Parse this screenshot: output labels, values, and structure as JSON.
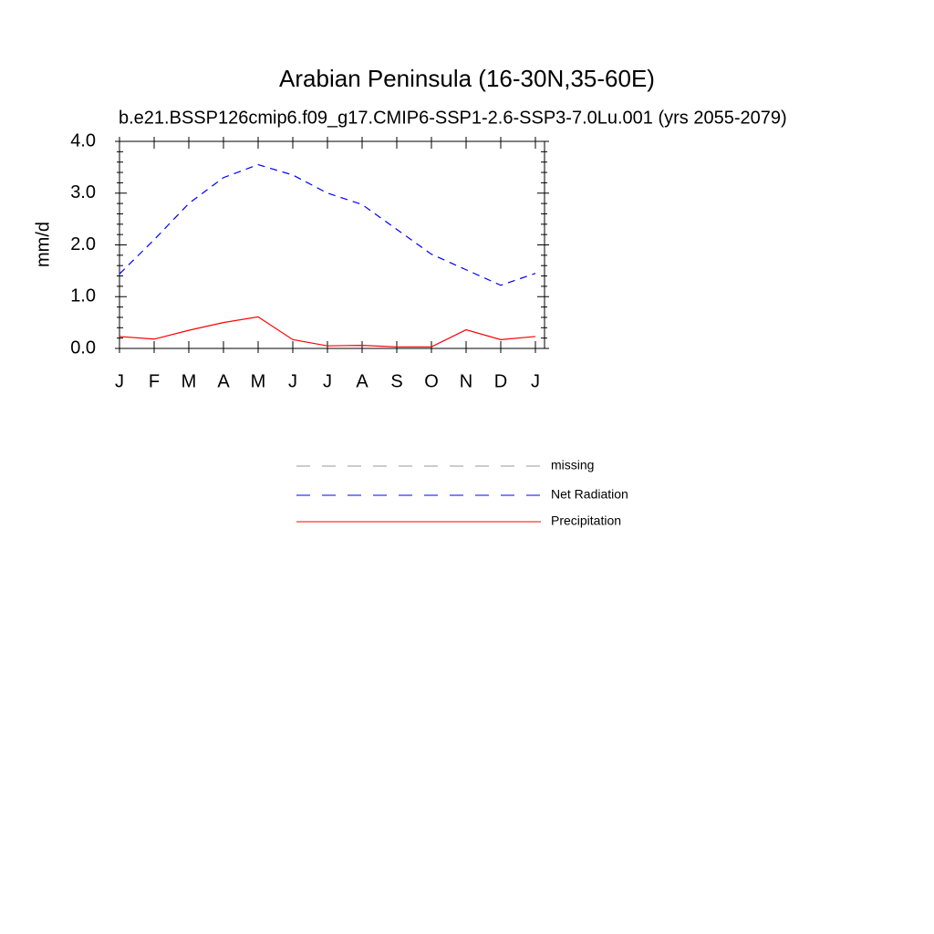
{
  "chart_data": {
    "type": "line",
    "title": "Arabian Peninsula (16-30N,35-60E)",
    "subtitle": "b.e21.BSSP126cmip6.f09_g17.CMIP6-SSP1-2.6-SSP3-7.0Lu.001 (yrs 2055-2079)",
    "y_label": "mm/d",
    "categories": [
      "J",
      "F",
      "M",
      "A",
      "M",
      "J",
      "J",
      "A",
      "S",
      "O",
      "N",
      "D",
      "J"
    ],
    "series": [
      {
        "name": "missing",
        "color": "#999999",
        "dash": true,
        "values": [
          null,
          null,
          null,
          null,
          null,
          null,
          null,
          null,
          null,
          null,
          null,
          null,
          null
        ]
      },
      {
        "name": "Net Radiation",
        "color": "#0000ff",
        "dash": true,
        "values": [
          1.44,
          2.1,
          2.8,
          3.3,
          3.55,
          3.35,
          3.0,
          2.78,
          2.3,
          1.82,
          1.52,
          1.22,
          1.45
        ]
      },
      {
        "name": "Precipitation",
        "color": "#ff0000",
        "dash": false,
        "values": [
          0.23,
          0.18,
          0.35,
          0.5,
          0.61,
          0.17,
          0.05,
          0.06,
          0.03,
          0.03,
          0.36,
          0.17,
          0.23
        ]
      }
    ],
    "ylim": [
      0,
      4
    ],
    "yticks": [
      {
        "value": 0,
        "label": "0.0"
      },
      {
        "value": 1,
        "label": "1.0"
      },
      {
        "value": 2,
        "label": "2.0"
      },
      {
        "value": 3,
        "label": "3.0"
      },
      {
        "value": 4,
        "label": "4.0"
      }
    ],
    "legend": "bottom"
  }
}
